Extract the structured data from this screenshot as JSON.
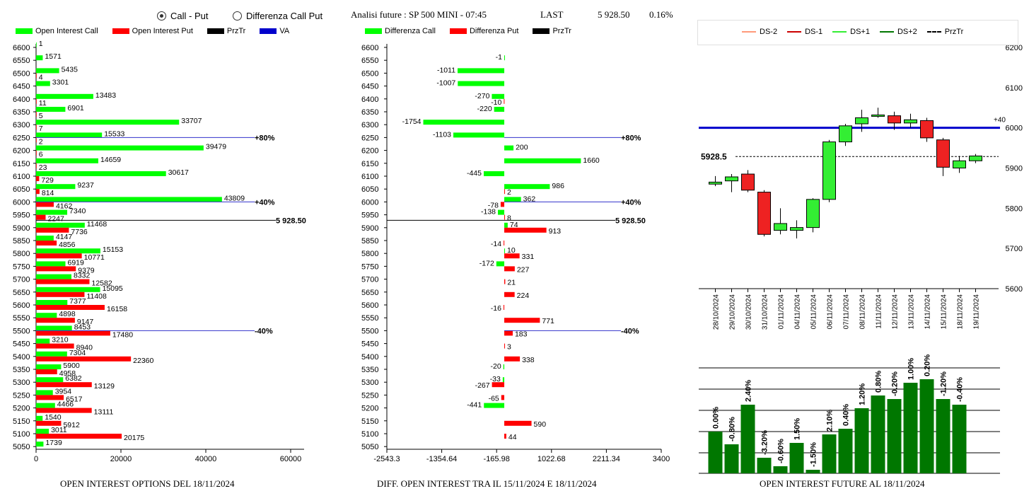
{
  "header": {
    "radio_call_put": "Call - Put",
    "radio_diff": "Differenza Call Put",
    "analysis_label": "Analisi future : SP 500 MINI - 07:45",
    "last_label": "LAST",
    "last_value": "5 928.50",
    "last_change": "0.16%"
  },
  "colors": {
    "call": "#00ff00",
    "put": "#ff0000",
    "przTr": "#000000",
    "va": "#0000cc",
    "dark_green": "#007700"
  },
  "left_chart": {
    "legend": [
      "Open Interest Call",
      "Open Interest Put",
      "PrzTr",
      "VA"
    ],
    "title": "OPEN INTEREST OPTIONS DEL 18/11/2024",
    "x_ticks": [
      "0",
      "20000",
      "40000",
      "60000"
    ],
    "price_label": "5 928.50",
    "pct_labels": [
      "+80%",
      "+40%",
      "-40%"
    ]
  },
  "middle_chart": {
    "legend": [
      "Differenza Call",
      "Differenza Put",
      "PrzTr"
    ],
    "title": "DIFF. OPEN INTEREST TRA IL 15/11/2024 E 18/11/2024",
    "x_ticks": [
      "-2543.3",
      "-1354.64",
      "-165.98",
      "1022.68",
      "2211.34",
      "3400"
    ],
    "price_label": "5 928.50",
    "pct_labels": [
      "+80%",
      "+40%",
      "-40%"
    ]
  },
  "right_chart": {
    "legend": [
      "DS-2",
      "DS-1",
      "DS+1",
      "DS+2",
      "PrzTr"
    ],
    "y_ticks": [
      "6200",
      "6100",
      "6000",
      "5900",
      "5800",
      "5700",
      "5600"
    ],
    "price_label": "5928.5",
    "marker_label": "+40",
    "title": "OPEN INTEREST FUTURE AL 18/11/2024"
  },
  "chart_data": [
    {
      "type": "bar",
      "orientation": "horizontal",
      "title": "OPEN INTEREST OPTIONS DEL 18/11/2024",
      "categories": [
        "6600",
        "6550",
        "6500",
        "6450",
        "6400",
        "6350",
        "6300",
        "6250",
        "6200",
        "6150",
        "6100",
        "6050",
        "6000",
        "5950",
        "5900",
        "5850",
        "5800",
        "5750",
        "5700",
        "5650",
        "5600",
        "5550",
        "5500",
        "5450",
        "5400",
        "5350",
        "5300",
        "5250",
        "5200",
        "5150",
        "5100",
        "5050"
      ],
      "series": [
        {
          "name": "Open Interest Call",
          "values": [
            1,
            1571,
            5435,
            3301,
            13483,
            6901,
            33707,
            15533,
            39479,
            14659,
            30617,
            9237,
            43809,
            7340,
            11468,
            4147,
            15153,
            6919,
            8332,
            15095,
            7377,
            4898,
            8453,
            3210,
            7304,
            5900,
            6382,
            3954,
            4466,
            1540,
            3011,
            1739
          ]
        },
        {
          "name": "Open Interest Put",
          "values": [
            null,
            null,
            4,
            null,
            11,
            5,
            7,
            2,
            6,
            23,
            729,
            814,
            4162,
            2247,
            7736,
            4856,
            10771,
            9379,
            12582,
            11408,
            16158,
            9147,
            17480,
            8940,
            22360,
            4958,
            13129,
            6517,
            13111,
            5912,
            20175,
            null
          ]
        }
      ],
      "xlim": [
        0,
        65000
      ],
      "x_ticks": [
        0,
        20000,
        40000,
        60000
      ],
      "reference_lines": [
        {
          "label": "+80%",
          "y": "6250"
        },
        {
          "label": "+40%",
          "y": "6000"
        },
        {
          "label": "5 928.50",
          "y": 5928.5
        },
        {
          "label": "-40%",
          "y": "5500"
        }
      ]
    },
    {
      "type": "bar",
      "orientation": "horizontal",
      "title": "DIFF. OPEN INTEREST TRA IL 15/11/2024 E 18/11/2024",
      "categories": [
        "6600",
        "6550",
        "6500",
        "6450",
        "6400",
        "6350",
        "6300",
        "6250",
        "6200",
        "6150",
        "6100",
        "6050",
        "6000",
        "5950",
        "5900",
        "5850",
        "5800",
        "5750",
        "5700",
        "5650",
        "5600",
        "5550",
        "5500",
        "5450",
        "5400",
        "5350",
        "5300",
        "5250",
        "5200",
        "5150",
        "5100",
        "5050"
      ],
      "series": [
        {
          "name": "Differenza Call",
          "values": [
            null,
            -1,
            -1011,
            -1007,
            -270,
            -220,
            -1754,
            -1103,
            200,
            1660,
            -445,
            986,
            362,
            -138,
            74,
            null,
            10,
            -172,
            null,
            null,
            null,
            null,
            null,
            null,
            null,
            -20,
            -33,
            null,
            -441,
            null,
            null,
            null
          ]
        },
        {
          "name": "Differenza Put",
          "values": [
            null,
            null,
            null,
            null,
            -10,
            null,
            null,
            null,
            null,
            null,
            null,
            2,
            -78,
            8,
            913,
            -14,
            331,
            227,
            21,
            224,
            -16,
            771,
            183,
            3,
            338,
            null,
            -267,
            -65,
            null,
            590,
            44,
            null
          ]
        }
      ],
      "xlim": [
        -2543.3,
        3400
      ],
      "x_ticks": [
        -2543.3,
        -1354.64,
        -165.98,
        1022.68,
        2211.34,
        3400
      ]
    },
    {
      "type": "candlestick",
      "categories": [
        "28/10/2024",
        "29/10/2024",
        "30/10/2024",
        "31/10/2024",
        "01/11/2024",
        "04/11/2024",
        "05/11/2024",
        "06/11/2024",
        "07/11/2024",
        "08/11/2024",
        "11/11/2024",
        "12/11/2024",
        "13/11/2024",
        "14/11/2024",
        "15/11/2024",
        "18/11/2024",
        "19/11/2024"
      ],
      "ohlc": [
        [
          5860,
          5880,
          5855,
          5865
        ],
        [
          5868,
          5885,
          5840,
          5878
        ],
        [
          5885,
          5895,
          5840,
          5845
        ],
        [
          5840,
          5845,
          5730,
          5735
        ],
        [
          5745,
          5800,
          5735,
          5762
        ],
        [
          5745,
          5770,
          5725,
          5752
        ],
        [
          5752,
          5825,
          5740,
          5822
        ],
        [
          5822,
          5970,
          5815,
          5965
        ],
        [
          5965,
          6010,
          5955,
          6005
        ],
        [
          6010,
          6045,
          5990,
          6025
        ],
        [
          6030,
          6050,
          6025,
          6032
        ],
        [
          6030,
          6040,
          5995,
          6012
        ],
        [
          6012,
          6035,
          6000,
          6020
        ],
        [
          6018,
          6025,
          5965,
          5975
        ],
        [
          5970,
          5975,
          5880,
          5902
        ],
        [
          5900,
          5930,
          5888,
          5918
        ],
        [
          5918,
          5935,
          5912,
          5930
        ]
      ],
      "candle_colors": [
        "up",
        "up",
        "down",
        "down",
        "up",
        "up",
        "up",
        "up",
        "up",
        "up",
        "up",
        "down",
        "up",
        "down",
        "down",
        "up",
        "up"
      ],
      "ylim": [
        5600,
        6200
      ],
      "y_ticks": [
        6200,
        6100,
        6000,
        5900,
        5800,
        5700,
        5600
      ],
      "lines": [
        {
          "label": "PrzTr",
          "y": 5928.5
        },
        {
          "label": "VA",
          "y": 6000
        }
      ]
    },
    {
      "type": "bar",
      "title": "OPEN INTEREST FUTURE AL 18/11/2024",
      "categories": [
        "28/10/2024",
        "29/10/2024",
        "30/10/2024",
        "31/10/2024",
        "01/11/2024",
        "04/11/2024",
        "05/11/2024",
        "06/11/2024",
        "07/11/2024",
        "08/11/2024",
        "11/11/2024",
        "12/11/2024",
        "13/11/2024",
        "14/11/2024",
        "15/11/2024",
        "18/11/2024"
      ],
      "pct_labels": [
        "0.00%",
        "-0.80%",
        "2.40%",
        "-3.20%",
        "-0.60%",
        "1.50%",
        "-1.50%",
        "2.10%",
        "0.40%",
        "1.20%",
        "0.80%",
        "-0.20%",
        "1.00%",
        "0.20%",
        "-1.20%",
        "-0.40%"
      ],
      "values": [
        59,
        41,
        97,
        22,
        10,
        43,
        5,
        55,
        63,
        92,
        110,
        105,
        128,
        133,
        105,
        97
      ]
    }
  ]
}
